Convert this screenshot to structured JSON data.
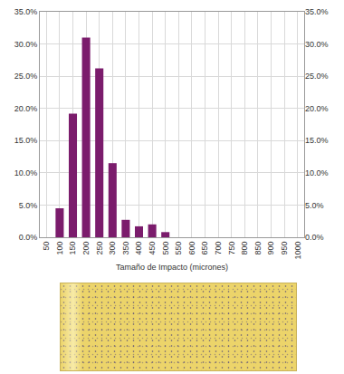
{
  "chart_data": {
    "type": "bar",
    "x_label": "Tamaño de Impacto (micrones)",
    "categories": [
      "50",
      "100",
      "150",
      "200",
      "250",
      "300",
      "350",
      "400",
      "450",
      "500",
      "550",
      "600",
      "650",
      "700",
      "750",
      "800",
      "850",
      "900",
      "950",
      "1000"
    ],
    "values": [
      0,
      4.5,
      19.2,
      31.0,
      26.2,
      11.5,
      2.7,
      1.7,
      2.0,
      0.8,
      0,
      0,
      0,
      0,
      0,
      0,
      0,
      0,
      0,
      0
    ],
    "color": "#7b1c6c",
    "ylim": [
      0,
      35
    ],
    "yticks": [
      {
        "value": 0,
        "label": "0.0%"
      },
      {
        "value": 5,
        "label": "5.0%"
      },
      {
        "value": 10,
        "label": "10.0%"
      },
      {
        "value": 15,
        "label": "15.0%"
      },
      {
        "value": 20,
        "label": "20.0%"
      },
      {
        "value": 25,
        "label": "25.0%"
      },
      {
        "value": 30,
        "label": "30.0%"
      },
      {
        "value": 35,
        "label": "35.0%"
      }
    ],
    "y2lim": [
      0,
      35
    ],
    "y2ticks": [
      {
        "value": 0,
        "label": "0.0%"
      },
      {
        "value": 5,
        "label": "5.0%"
      },
      {
        "value": 10,
        "label": "10.0%"
      },
      {
        "value": 15,
        "label": "15.0%"
      },
      {
        "value": 20,
        "label": "20.0%"
      },
      {
        "value": 25,
        "label": "25.0%"
      },
      {
        "value": 30,
        "label": "30.0%"
      },
      {
        "value": 35,
        "label": "35.0%"
      }
    ],
    "grid": true
  }
}
